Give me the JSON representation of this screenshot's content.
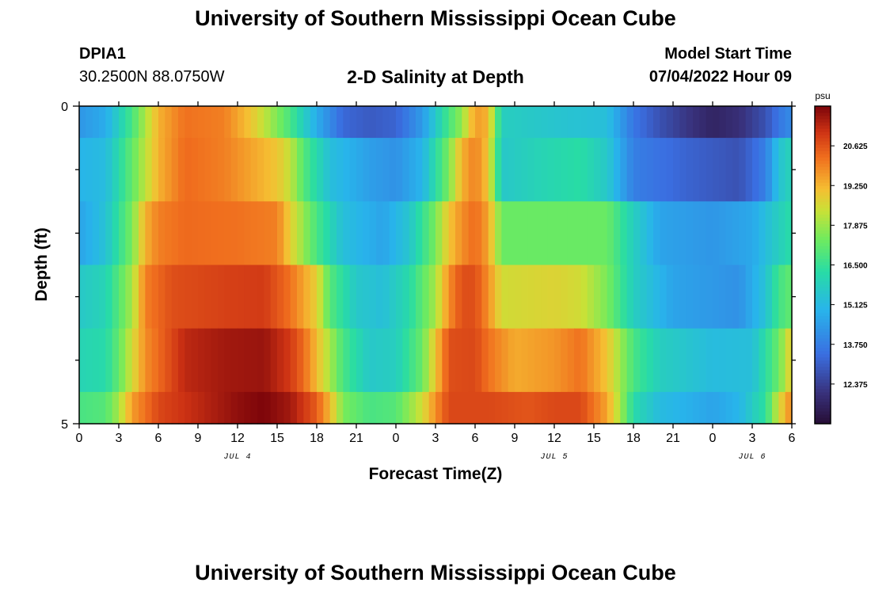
{
  "page": {
    "title_top": "University of Southern Mississippi Ocean Cube",
    "title_bottom": "University of Southern Mississippi Ocean Cube",
    "station_id": "DPIA1",
    "coords": "30.2500N  88.0750W",
    "subtitle": "2-D Salinity at Depth",
    "start_label": "Model Start Time",
    "start_value": "07/04/2022 Hour 09"
  },
  "chart_data": {
    "type": "heatmap",
    "title": "2-D Salinity at Depth",
    "xlabel": "Forecast Time(Z)",
    "ylabel": "Depth (ft)",
    "x_range_hours": [
      0,
      54
    ],
    "y_range_ft": [
      0,
      5
    ],
    "x_ticks": [
      {
        "h": 0,
        "label": "0"
      },
      {
        "h": 3,
        "label": "3"
      },
      {
        "h": 6,
        "label": "6"
      },
      {
        "h": 9,
        "label": "9"
      },
      {
        "h": 12,
        "label": "12"
      },
      {
        "h": 15,
        "label": "15"
      },
      {
        "h": 18,
        "label": "18"
      },
      {
        "h": 21,
        "label": "21"
      },
      {
        "h": 24,
        "label": "0"
      },
      {
        "h": 27,
        "label": "3"
      },
      {
        "h": 30,
        "label": "6"
      },
      {
        "h": 33,
        "label": "9"
      },
      {
        "h": 36,
        "label": "12"
      },
      {
        "h": 39,
        "label": "15"
      },
      {
        "h": 42,
        "label": "18"
      },
      {
        "h": 45,
        "label": "21"
      },
      {
        "h": 48,
        "label": "0"
      },
      {
        "h": 51,
        "label": "3"
      },
      {
        "h": 54,
        "label": "6"
      }
    ],
    "y_ticks": [
      {
        "v": 0,
        "label": "0"
      },
      {
        "v": 5,
        "label": "5"
      }
    ],
    "date_labels": [
      {
        "h": 12,
        "label": "JUL 4"
      },
      {
        "h": 36,
        "label": "JUL 5"
      },
      {
        "h": 51,
        "label": "JUL 6"
      }
    ],
    "colorbar": {
      "unit": "psu",
      "min": 11.0,
      "max": 22.0,
      "tick_values": [
        20.625,
        19.25,
        17.875,
        16.5,
        15.125,
        13.75,
        12.375
      ],
      "tick_labels": [
        "20.625",
        "19.250",
        "17.875",
        "16.500",
        "15.125",
        "13.750",
        "12.375"
      ]
    },
    "depth_layers_ft": [
      0.25,
      1.0,
      2.0,
      3.0,
      4.0,
      4.75
    ],
    "layer_edges_ft": [
      0,
      0.5,
      1.5,
      2.5,
      3.5,
      4.5,
      5
    ],
    "salinity_keyframes": [
      [
        [
          0,
          14.3
        ],
        [
          2,
          14.8
        ],
        [
          4,
          16.8
        ],
        [
          6,
          19.3
        ],
        [
          8,
          20.2
        ],
        [
          11,
          20.0
        ],
        [
          13,
          19.0
        ],
        [
          14,
          18.3
        ],
        [
          16,
          16.8
        ],
        [
          18,
          14.8
        ],
        [
          20,
          13.3
        ],
        [
          22,
          13.0
        ],
        [
          24,
          13.2
        ],
        [
          26,
          14.4
        ],
        [
          28,
          16.8
        ],
        [
          29,
          17.8
        ],
        [
          30,
          19.6
        ],
        [
          31,
          19.3
        ],
        [
          32,
          15.8
        ],
        [
          36,
          15.5
        ],
        [
          40,
          15.3
        ],
        [
          42,
          13.6
        ],
        [
          44,
          12.8
        ],
        [
          46,
          12.2
        ],
        [
          48,
          11.7
        ],
        [
          50,
          12.0
        ],
        [
          52,
          12.8
        ],
        [
          53,
          13.6
        ],
        [
          54,
          14.1
        ]
      ],
      [
        [
          0,
          15.0
        ],
        [
          2,
          15.2
        ],
        [
          4,
          17.2
        ],
        [
          6,
          19.3
        ],
        [
          8,
          20.3
        ],
        [
          11,
          20.0
        ],
        [
          13,
          19.5
        ],
        [
          15,
          19.0
        ],
        [
          16,
          18.3
        ],
        [
          17,
          17.0
        ],
        [
          19,
          15.3
        ],
        [
          22,
          14.5
        ],
        [
          24,
          14.2
        ],
        [
          26,
          15.0
        ],
        [
          28,
          17.5
        ],
        [
          29,
          19.3
        ],
        [
          30,
          20.0
        ],
        [
          31,
          19.0
        ],
        [
          32,
          15.6
        ],
        [
          35,
          16.0
        ],
        [
          38,
          16.3
        ],
        [
          40,
          15.6
        ],
        [
          42,
          13.8
        ],
        [
          46,
          13.2
        ],
        [
          50,
          12.8
        ],
        [
          52,
          13.8
        ],
        [
          53,
          15.4
        ],
        [
          54,
          16.0
        ]
      ],
      [
        [
          0,
          14.6
        ],
        [
          2,
          15.4
        ],
        [
          4,
          17.5
        ],
        [
          5,
          19.3
        ],
        [
          6,
          20.0
        ],
        [
          8,
          20.3
        ],
        [
          12,
          20.2
        ],
        [
          15,
          20.0
        ],
        [
          16,
          18.8
        ],
        [
          18,
          16.8
        ],
        [
          20,
          15.3
        ],
        [
          23,
          14.6
        ],
        [
          25,
          15.5
        ],
        [
          27,
          17.5
        ],
        [
          28,
          19.0
        ],
        [
          29,
          19.8
        ],
        [
          30,
          20.3
        ],
        [
          31,
          19.5
        ],
        [
          32,
          17.3
        ],
        [
          36,
          17.3
        ],
        [
          40,
          17.3
        ],
        [
          42,
          15.8
        ],
        [
          44,
          14.6
        ],
        [
          48,
          14.3
        ],
        [
          51,
          14.7
        ],
        [
          53,
          15.8
        ],
        [
          54,
          16.3
        ]
      ],
      [
        [
          0,
          15.6
        ],
        [
          2,
          16.0
        ],
        [
          4,
          18.0
        ],
        [
          5,
          20.0
        ],
        [
          7,
          20.7
        ],
        [
          11,
          20.9
        ],
        [
          14,
          21.0
        ],
        [
          16,
          20.2
        ],
        [
          18,
          18.8
        ],
        [
          19,
          17.0
        ],
        [
          21,
          15.6
        ],
        [
          23,
          15.3
        ],
        [
          25,
          16.2
        ],
        [
          27,
          18.0
        ],
        [
          28,
          19.8
        ],
        [
          29,
          20.7
        ],
        [
          30,
          20.7
        ],
        [
          31,
          19.8
        ],
        [
          32,
          18.5
        ],
        [
          36,
          18.7
        ],
        [
          38,
          18.5
        ],
        [
          40,
          17.5
        ],
        [
          42,
          15.8
        ],
        [
          45,
          14.6
        ],
        [
          50,
          14.2
        ],
        [
          52,
          15.4
        ],
        [
          53,
          16.7
        ],
        [
          54,
          17.2
        ]
      ],
      [
        [
          0,
          16.0
        ],
        [
          2,
          16.2
        ],
        [
          3,
          17.2
        ],
        [
          5,
          19.8
        ],
        [
          8,
          21.3
        ],
        [
          11,
          21.6
        ],
        [
          14,
          21.7
        ],
        [
          16,
          21.0
        ],
        [
          17,
          20.3
        ],
        [
          19,
          18.0
        ],
        [
          20,
          16.8
        ],
        [
          22,
          15.6
        ],
        [
          24,
          15.8
        ],
        [
          26,
          17.3
        ],
        [
          27,
          19.0
        ],
        [
          28,
          20.7
        ],
        [
          30,
          20.8
        ],
        [
          31,
          20.2
        ],
        [
          33,
          19.4
        ],
        [
          36,
          19.7
        ],
        [
          38,
          20.2
        ],
        [
          40,
          19.0
        ],
        [
          42,
          16.8
        ],
        [
          44,
          15.8
        ],
        [
          48,
          15.2
        ],
        [
          51,
          15.3
        ],
        [
          53,
          17.3
        ],
        [
          54,
          19.0
        ]
      ],
      [
        [
          0,
          16.8
        ],
        [
          2,
          17.0
        ],
        [
          3,
          18.0
        ],
        [
          4,
          19.6
        ],
        [
          6,
          20.8
        ],
        [
          9,
          21.3
        ],
        [
          12,
          21.8
        ],
        [
          14,
          22.0
        ],
        [
          16,
          21.6
        ],
        [
          18,
          20.5
        ],
        [
          19,
          19.2
        ],
        [
          20,
          17.5
        ],
        [
          22,
          16.8
        ],
        [
          24,
          17.0
        ],
        [
          26,
          18.5
        ],
        [
          27,
          19.8
        ],
        [
          28,
          20.8
        ],
        [
          31,
          20.8
        ],
        [
          34,
          20.6
        ],
        [
          36,
          20.8
        ],
        [
          38,
          20.8
        ],
        [
          40,
          19.5
        ],
        [
          41,
          18.0
        ],
        [
          42,
          16.2
        ],
        [
          44,
          15.2
        ],
        [
          48,
          14.6
        ],
        [
          50,
          15.0
        ],
        [
          52,
          16.4
        ],
        [
          53,
          18.5
        ],
        [
          54,
          20.0
        ]
      ]
    ]
  }
}
